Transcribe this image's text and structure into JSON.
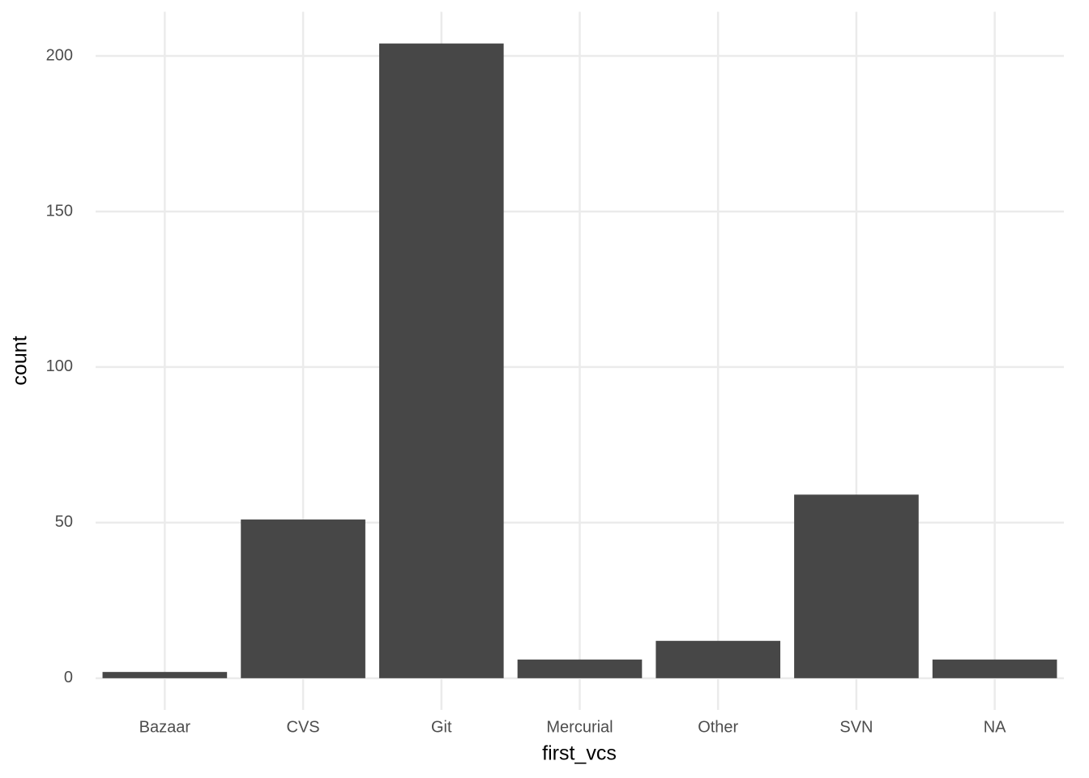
{
  "chart_data": {
    "type": "bar",
    "x_label": "first_vcs",
    "y_label": "count",
    "categories": [
      "Bazaar",
      "CVS",
      "Git",
      "Mercurial",
      "Other",
      "SVN",
      "NA"
    ],
    "values": [
      2,
      51,
      204,
      6,
      12,
      59,
      6
    ],
    "color": "#474747",
    "ylim": [
      -10.2,
      214.2
    ],
    "yticks": [
      0,
      50,
      100,
      150,
      200
    ],
    "grid": true
  }
}
